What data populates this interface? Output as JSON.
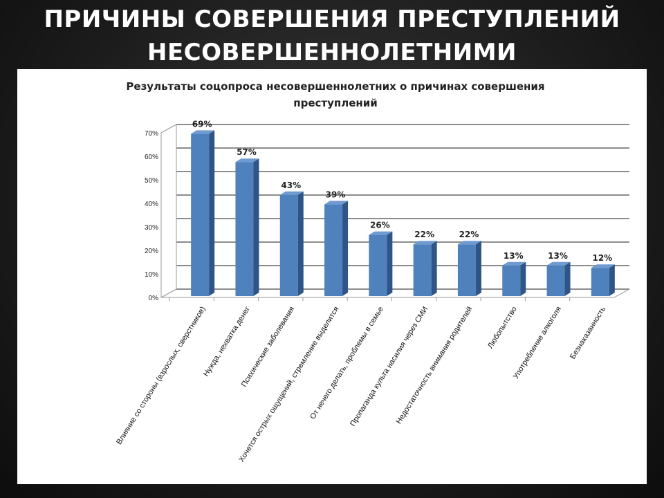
{
  "slide": {
    "title_line1": "Причины совершения преступлений",
    "title_line2": "несовершеннолетними"
  },
  "chart_data": {
    "type": "bar",
    "title_line1": "Результаты соцопроса несовершеннолетних о причинах совершения",
    "title_line2": "преступлений",
    "categories": [
      "Влияние со стороны (взрослых, сверстников)",
      "Нужда, нехватка денег",
      "Психические заболевания",
      "Хочется острых ощущений, стремление выделится",
      "От нечего делать, проблемы в семье",
      "Пропаганда культа насилия через СМИ",
      "Недостаточность внимания родителей",
      "Любопытство",
      "Употребление алкоголя",
      "Безнаказанность"
    ],
    "values": [
      69,
      57,
      43,
      39,
      26,
      22,
      22,
      13,
      13,
      12
    ],
    "data_labels": [
      "69%",
      "57%",
      "43%",
      "39%",
      "26%",
      "22%",
      "22%",
      "13%",
      "13%",
      "12%"
    ],
    "y_ticks": [
      "0%",
      "10%",
      "20%",
      "30%",
      "40%",
      "50%",
      "60%",
      "70%"
    ],
    "ylim": [
      0,
      70
    ],
    "grid": true,
    "style": "3d-bar",
    "bar_color": "#4f81bd",
    "bar_side_color": "#2f5587",
    "bar_top_color": "#6f9bd1"
  }
}
